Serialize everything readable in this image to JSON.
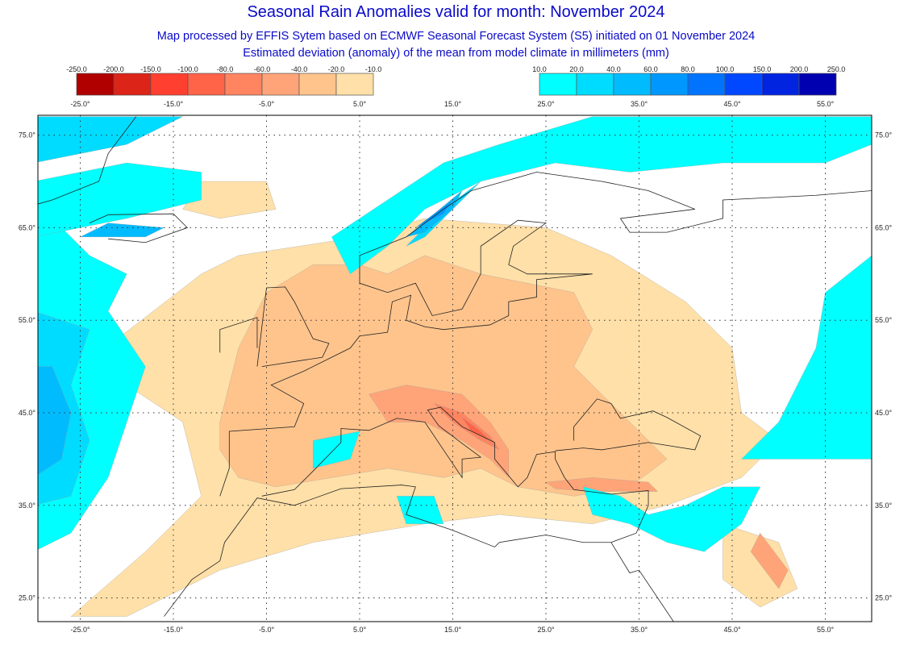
{
  "title": "Seasonal Rain Anomalies valid for month: November 2024",
  "subtitle1": "Map processed by EFFIS Sytem based on ECMWF Seasonal Forecast System (S5) initiated on 01 November 2024",
  "subtitle2": "Estimated deviation (anomaly) of the mean from model climate in millimeters (mm)",
  "legend_negative": {
    "labels": [
      "-250.0",
      "-200.0",
      "-150.0",
      "-100.0",
      "-80.0",
      "-60.0",
      "-40.0",
      "-20.0",
      "-10.0"
    ],
    "colors": [
      "#b00000",
      "#dc2418",
      "#ff4030",
      "#ff6448",
      "#ff8460",
      "#ffa478",
      "#ffc48c",
      "#ffe0a8"
    ]
  },
  "legend_positive": {
    "labels": [
      "10.0",
      "20.0",
      "40.0",
      "60.0",
      "80.0",
      "100.0",
      "150.0",
      "200.0",
      "250.0"
    ],
    "colors": [
      "#00ffff",
      "#00dcff",
      "#00bcff",
      "#0098ff",
      "#0074ff",
      "#0048ff",
      "#0024e0",
      "#0000b0"
    ]
  },
  "map": {
    "lon_labels": [
      "-25.0°",
      "-15.0°",
      "-5.0°",
      "5.0°",
      "15.0°",
      "25.0°",
      "35.0°",
      "45.0°",
      "55.0°"
    ],
    "lat_labels": [
      "75.0°",
      "65.0°",
      "55.0°",
      "45.0°",
      "35.0°",
      "25.0°"
    ],
    "land_color": "#ffffff",
    "grid": "dotted"
  }
}
